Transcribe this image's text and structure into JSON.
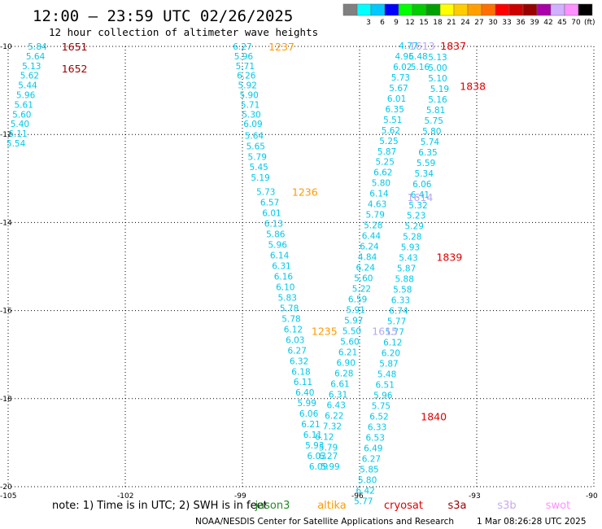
{
  "header": {
    "title": "12:00 — 23:59 UTC 02/26/2025",
    "subtitle": "12 hour collection of altimeter wave heights"
  },
  "legend": {
    "unit": "(ft)",
    "swatches": [
      {
        "color": "#808080",
        "label": ""
      },
      {
        "color": "#00ffff",
        "label": "3"
      },
      {
        "color": "#00c8ff",
        "label": "6"
      },
      {
        "color": "#0000ff",
        "label": "9"
      },
      {
        "color": "#00ff00",
        "label": "12"
      },
      {
        "color": "#00cc00",
        "label": "15"
      },
      {
        "color": "#00a000",
        "label": "18"
      },
      {
        "color": "#ffff00",
        "label": "21"
      },
      {
        "color": "#ffcc00",
        "label": "24"
      },
      {
        "color": "#ffa000",
        "label": "27"
      },
      {
        "color": "#ff7000",
        "label": "30"
      },
      {
        "color": "#ff0000",
        "label": "33"
      },
      {
        "color": "#cc0000",
        "label": "36"
      },
      {
        "color": "#990000",
        "label": "39"
      },
      {
        "color": "#aa00aa",
        "label": "42"
      },
      {
        "color": "#d0b0ff",
        "label": "45"
      },
      {
        "color": "#ff90ff",
        "label": "70"
      },
      {
        "color": "#000000",
        "label": ""
      }
    ]
  },
  "note": "note: 1) Time is in UTC; 2) SWH is in feet",
  "missions": [
    {
      "name": "jason3",
      "color": "#228b22"
    },
    {
      "name": "altika",
      "color": "#ff9900"
    },
    {
      "name": "cryosat",
      "color": "#e00000"
    },
    {
      "name": "s3a",
      "color": "#990000"
    },
    {
      "name": "s3b",
      "color": "#c8a8f0"
    },
    {
      "name": "swot",
      "color": "#ff90ff"
    }
  ],
  "footer": {
    "credit": "NOAA/NESDIS Center for Satellite Applications and Research",
    "timestamp": "1 Mar 08:26:28 UTC 2025"
  },
  "chart_data": {
    "type": "scatter",
    "xlim": [
      -105,
      -90
    ],
    "ylim": [
      -20,
      -10
    ],
    "xticks": [
      -105,
      -102,
      -99,
      -96,
      -93,
      -90
    ],
    "yticks": [
      -10,
      -12,
      -14,
      -16,
      -18,
      -20
    ],
    "xtick_labels": [
      "-105",
      "-102",
      "-99",
      "-96",
      "-93",
      "-90"
    ],
    "ytick_labels": [
      "-10",
      "-12",
      "-14",
      "-16",
      "-18",
      "-20"
    ],
    "point_color": "#00c8e8",
    "grid": true,
    "series": [
      {
        "points": [
          {
            "x": -104.25,
            "y": -10.0,
            "v": "5.84"
          },
          {
            "x": -104.3,
            "y": -10.22,
            "v": "5.64"
          },
          {
            "x": -104.4,
            "y": -10.44,
            "v": "5.13"
          },
          {
            "x": -104.45,
            "y": -10.66,
            "v": "5.62"
          },
          {
            "x": -104.5,
            "y": -10.88,
            "v": "5.44"
          },
          {
            "x": -104.55,
            "y": -11.1,
            "v": "5.96"
          },
          {
            "x": -104.6,
            "y": -11.32,
            "v": "5.61"
          },
          {
            "x": -104.65,
            "y": -11.54,
            "v": "5.60"
          },
          {
            "x": -104.7,
            "y": -11.76,
            "v": "5.40"
          },
          {
            "x": -104.75,
            "y": -11.98,
            "v": "6.11"
          },
          {
            "x": -104.8,
            "y": -12.2,
            "v": "5.54"
          }
        ]
      },
      {
        "points": [
          {
            "x": -99.0,
            "y": -10.0,
            "v": "6.27"
          },
          {
            "x": -98.97,
            "y": -10.22,
            "v": "5.96"
          },
          {
            "x": -98.93,
            "y": -10.44,
            "v": "5.71"
          },
          {
            "x": -98.9,
            "y": -10.66,
            "v": "6.26"
          },
          {
            "x": -98.87,
            "y": -10.88,
            "v": "5.92"
          },
          {
            "x": -98.83,
            "y": -11.1,
            "v": "5.90"
          },
          {
            "x": -98.8,
            "y": -11.32,
            "v": "5.71"
          },
          {
            "x": -98.77,
            "y": -11.54,
            "v": "5.30"
          },
          {
            "x": -98.73,
            "y": -11.76,
            "v": "6.09"
          },
          {
            "x": -98.7,
            "y": -12.02,
            "v": "5.64"
          },
          {
            "x": -98.66,
            "y": -12.26,
            "v": "5.65"
          },
          {
            "x": -98.62,
            "y": -12.5,
            "v": "5.79"
          },
          {
            "x": -98.58,
            "y": -12.74,
            "v": "5.45"
          },
          {
            "x": -98.54,
            "y": -12.98,
            "v": "5.19"
          },
          {
            "x": -98.4,
            "y": -13.3,
            "v": "5.73"
          },
          {
            "x": -98.3,
            "y": -13.54,
            "v": "6.57"
          },
          {
            "x": -98.25,
            "y": -13.78,
            "v": "6.01"
          },
          {
            "x": -98.2,
            "y": -14.02,
            "v": "6.13"
          },
          {
            "x": -98.15,
            "y": -14.26,
            "v": "5.86"
          },
          {
            "x": -98.1,
            "y": -14.5,
            "v": "5.96"
          },
          {
            "x": -98.05,
            "y": -14.74,
            "v": "6.14"
          },
          {
            "x": -98.0,
            "y": -14.98,
            "v": "6.31"
          },
          {
            "x": -97.95,
            "y": -15.22,
            "v": "6.16"
          },
          {
            "x": -97.9,
            "y": -15.46,
            "v": "6.10"
          },
          {
            "x": -97.85,
            "y": -15.7,
            "v": "5.83"
          },
          {
            "x": -97.8,
            "y": -15.94,
            "v": "5.78"
          },
          {
            "x": -97.75,
            "y": -16.18,
            "v": "5.78"
          },
          {
            "x": -97.7,
            "y": -16.42,
            "v": "6.12"
          },
          {
            "x": -97.65,
            "y": -16.66,
            "v": "6.03"
          },
          {
            "x": -97.6,
            "y": -16.9,
            "v": "6.27"
          },
          {
            "x": -97.55,
            "y": -17.14,
            "v": "6.32"
          },
          {
            "x": -97.5,
            "y": -17.38,
            "v": "6.18"
          },
          {
            "x": -97.45,
            "y": -17.62,
            "v": "6.11"
          },
          {
            "x": -97.4,
            "y": -17.86,
            "v": "6.40"
          },
          {
            "x": -97.35,
            "y": -18.1,
            "v": "5.99"
          },
          {
            "x": -97.3,
            "y": -18.34,
            "v": "6.06"
          },
          {
            "x": -97.25,
            "y": -18.58,
            "v": "6.21"
          },
          {
            "x": -97.2,
            "y": -18.82,
            "v": "6.11"
          },
          {
            "x": -97.15,
            "y": -19.06,
            "v": "5.93"
          },
          {
            "x": -97.1,
            "y": -19.3,
            "v": "6.03"
          },
          {
            "x": -97.05,
            "y": -19.54,
            "v": "6.09"
          }
        ]
      },
      {
        "points": [
          {
            "x": -96.8,
            "y": -19.1,
            "v": "5.79"
          },
          {
            "x": -96.8,
            "y": -19.3,
            "v": "6.27"
          },
          {
            "x": -96.75,
            "y": -19.54,
            "v": "5.99"
          },
          {
            "x": -96.9,
            "y": -18.86,
            "v": "6.12"
          },
          {
            "x": -96.7,
            "y": -18.62,
            "v": "7.32"
          },
          {
            "x": -96.65,
            "y": -18.38,
            "v": "6.22"
          },
          {
            "x": -96.6,
            "y": -18.14,
            "v": "6.43"
          },
          {
            "x": -96.55,
            "y": -17.9,
            "v": "6.31"
          },
          {
            "x": -96.5,
            "y": -17.66,
            "v": "6.61"
          },
          {
            "x": -96.4,
            "y": -17.42,
            "v": "6.28"
          },
          {
            "x": -96.35,
            "y": -17.18,
            "v": "6.90"
          },
          {
            "x": -96.3,
            "y": -16.94,
            "v": "6.21"
          },
          {
            "x": -96.25,
            "y": -16.7,
            "v": "5.60"
          },
          {
            "x": -96.2,
            "y": -16.46,
            "v": "5.50"
          },
          {
            "x": -96.15,
            "y": -16.22,
            "v": "5.97"
          },
          {
            "x": -96.1,
            "y": -15.98,
            "v": "5.91"
          },
          {
            "x": -96.05,
            "y": -15.74,
            "v": "6.59"
          },
          {
            "x": -95.95,
            "y": -15.5,
            "v": "5.22"
          },
          {
            "x": -95.9,
            "y": -15.26,
            "v": "5.60"
          },
          {
            "x": -95.85,
            "y": -15.02,
            "v": "6.24"
          },
          {
            "x": -95.8,
            "y": -14.78,
            "v": "4.84"
          },
          {
            "x": -95.75,
            "y": -14.54,
            "v": "6.24"
          },
          {
            "x": -95.7,
            "y": -14.3,
            "v": "6.44"
          },
          {
            "x": -95.65,
            "y": -14.06,
            "v": "5.28"
          },
          {
            "x": -95.6,
            "y": -13.82,
            "v": "5.79"
          },
          {
            "x": -95.55,
            "y": -13.58,
            "v": "4.63"
          },
          {
            "x": -95.5,
            "y": -13.34,
            "v": "6.14"
          },
          {
            "x": -95.45,
            "y": -13.1,
            "v": "5.80"
          },
          {
            "x": -95.4,
            "y": -12.86,
            "v": "6.62"
          },
          {
            "x": -95.35,
            "y": -12.62,
            "v": "5.25"
          },
          {
            "x": -95.3,
            "y": -12.38,
            "v": "5.87"
          },
          {
            "x": -95.25,
            "y": -12.14,
            "v": "5.25"
          },
          {
            "x": -95.2,
            "y": -11.9,
            "v": "5.62"
          },
          {
            "x": -95.15,
            "y": -11.66,
            "v": "5.51"
          },
          {
            "x": -95.1,
            "y": -11.42,
            "v": "6.35"
          },
          {
            "x": -95.05,
            "y": -11.18,
            "v": "6.01"
          },
          {
            "x": -95.0,
            "y": -10.94,
            "v": "5.67"
          },
          {
            "x": -94.95,
            "y": -10.7,
            "v": "5.73"
          },
          {
            "x": -94.9,
            "y": -10.46,
            "v": "6.02"
          },
          {
            "x": -94.85,
            "y": -10.22,
            "v": "4.96"
          },
          {
            "x": -94.75,
            "y": -9.98,
            "v": "4.77"
          }
        ]
      },
      {
        "points": [
          {
            "x": -94.5,
            "y": -10.22,
            "v": "5.48"
          },
          {
            "x": -94.45,
            "y": -10.46,
            "v": "5.16"
          },
          {
            "x": -94.0,
            "y": -10.24,
            "v": "5.13"
          },
          {
            "x": -94.0,
            "y": -10.48,
            "v": "5.00"
          },
          {
            "x": -94.0,
            "y": -10.72,
            "v": "5.10"
          },
          {
            "x": -93.95,
            "y": -10.96,
            "v": "5.19"
          },
          {
            "x": -94.0,
            "y": -11.2,
            "v": "5.16"
          },
          {
            "x": -94.05,
            "y": -11.44,
            "v": "5.81"
          },
          {
            "x": -94.1,
            "y": -11.68,
            "v": "5.75"
          },
          {
            "x": -94.15,
            "y": -11.92,
            "v": "5.80"
          },
          {
            "x": -94.2,
            "y": -12.16,
            "v": "5.74"
          },
          {
            "x": -94.25,
            "y": -12.4,
            "v": "6.35"
          },
          {
            "x": -94.3,
            "y": -12.64,
            "v": "5.59"
          },
          {
            "x": -94.35,
            "y": -12.88,
            "v": "5.34"
          },
          {
            "x": -94.4,
            "y": -13.12,
            "v": "6.06"
          },
          {
            "x": -94.45,
            "y": -13.36,
            "v": "6.41"
          },
          {
            "x": -94.5,
            "y": -13.6,
            "v": "5.32"
          },
          {
            "x": -94.55,
            "y": -13.84,
            "v": "5.23"
          },
          {
            "x": -94.6,
            "y": -14.08,
            "v": "5.29"
          },
          {
            "x": -94.65,
            "y": -14.32,
            "v": "5.28"
          },
          {
            "x": -94.7,
            "y": -14.56,
            "v": "5.93"
          },
          {
            "x": -94.75,
            "y": -14.8,
            "v": "5.43"
          },
          {
            "x": -94.8,
            "y": -15.04,
            "v": "5.87"
          },
          {
            "x": -94.85,
            "y": -15.28,
            "v": "5.88"
          },
          {
            "x": -94.9,
            "y": -15.52,
            "v": "5.58"
          },
          {
            "x": -94.95,
            "y": -15.76,
            "v": "6.33"
          },
          {
            "x": -95.0,
            "y": -16.0,
            "v": "6.74"
          },
          {
            "x": -95.05,
            "y": -16.24,
            "v": "5.77"
          },
          {
            "x": -95.1,
            "y": -16.48,
            "v": "5.77"
          },
          {
            "x": -95.15,
            "y": -16.72,
            "v": "6.12"
          },
          {
            "x": -95.2,
            "y": -16.96,
            "v": "6.20"
          },
          {
            "x": -95.25,
            "y": -17.2,
            "v": "5.87"
          },
          {
            "x": -95.3,
            "y": -17.44,
            "v": "5.48"
          },
          {
            "x": -95.35,
            "y": -17.68,
            "v": "6.51"
          },
          {
            "x": -95.4,
            "y": -17.92,
            "v": "5.96"
          },
          {
            "x": -95.45,
            "y": -18.16,
            "v": "5.75"
          },
          {
            "x": -95.5,
            "y": -18.4,
            "v": "6.52"
          },
          {
            "x": -95.55,
            "y": -18.64,
            "v": "6.33"
          },
          {
            "x": -95.6,
            "y": -18.88,
            "v": "6.53"
          },
          {
            "x": -95.65,
            "y": -19.12,
            "v": "6.49"
          },
          {
            "x": -95.7,
            "y": -19.36,
            "v": "6.27"
          },
          {
            "x": -95.75,
            "y": -19.6,
            "v": "5.85"
          },
          {
            "x": -95.8,
            "y": -19.84,
            "v": "5.80"
          },
          {
            "x": -95.85,
            "y": -20.08,
            "v": "6.42"
          },
          {
            "x": -95.9,
            "y": -20.32,
            "v": "5.77"
          }
        ]
      }
    ],
    "time_labels": [
      {
        "x": -103.3,
        "y": -10.0,
        "text": "1651",
        "color": "#990000"
      },
      {
        "x": -103.3,
        "y": -10.5,
        "text": "1652",
        "color": "#990000"
      },
      {
        "x": -98.0,
        "y": -10.0,
        "text": "1237",
        "color": "#ff9900"
      },
      {
        "x": -97.4,
        "y": -13.3,
        "text": "1236",
        "color": "#ff9900"
      },
      {
        "x": -96.9,
        "y": -16.46,
        "text": "1235",
        "color": "#ff9900"
      },
      {
        "x": -93.6,
        "y": -9.98,
        "text": "1837",
        "color": "#e00000"
      },
      {
        "x": -93.1,
        "y": -10.9,
        "text": "1838",
        "color": "#e00000"
      },
      {
        "x": -93.7,
        "y": -14.78,
        "text": "1839",
        "color": "#e00000"
      },
      {
        "x": -94.1,
        "y": -18.4,
        "text": "1840",
        "color": "#e00000"
      },
      {
        "x": -94.45,
        "y": -13.42,
        "text": "1614",
        "color": "#b8a8f0"
      },
      {
        "x": -95.35,
        "y": -16.46,
        "text": "1615",
        "color": "#b8a8f0"
      },
      {
        "x": -94.4,
        "y": -9.98,
        "text": "1613",
        "color": "#b8a8f0"
      }
    ]
  }
}
